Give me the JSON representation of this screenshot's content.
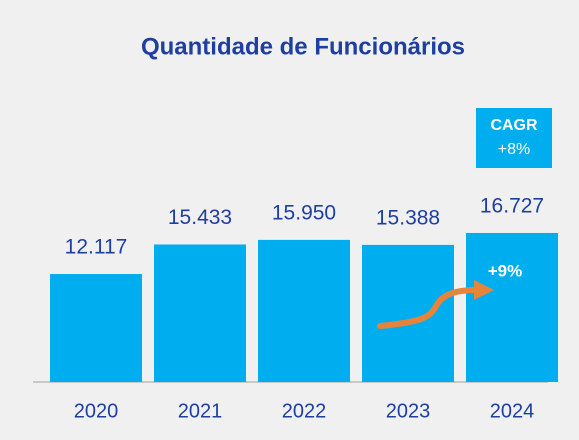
{
  "chart_data": {
    "type": "bar",
    "title": "Quantidade de Funcionários",
    "categories": [
      "2020",
      "2021",
      "2022",
      "2023",
      "2024"
    ],
    "values": [
      12117,
      15433,
      15950,
      15388,
      16727
    ],
    "value_labels": [
      "12.117",
      "15.433",
      "15.950",
      "15.388",
      "16.727"
    ],
    "color": "#00aeef",
    "annotations": {
      "cagr_title": "CAGR",
      "cagr_value": "+8%",
      "growth": "+9%"
    }
  }
}
